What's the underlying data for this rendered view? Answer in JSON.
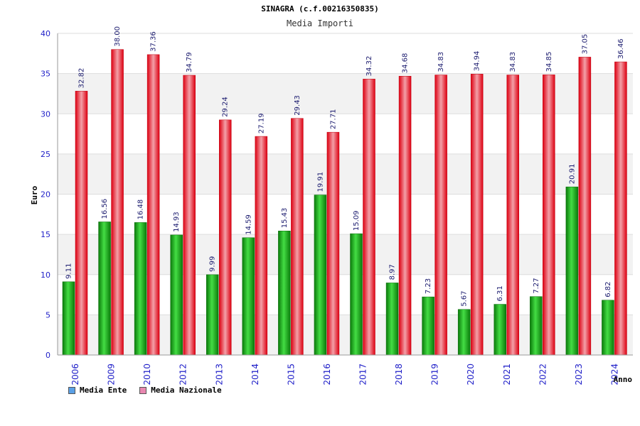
{
  "chart_data": {
    "type": "bar",
    "title": "SINAGRA (c.f.00216350835)",
    "subtitle": "Media Importi",
    "xlabel": "Anno",
    "ylabel": "Euro",
    "ylim": [
      0,
      40
    ],
    "yticks": [
      0,
      5,
      10,
      15,
      20,
      25,
      30,
      35,
      40
    ],
    "grid": true,
    "legend_position": "bottom-left",
    "categories": [
      "2006",
      "2009",
      "2010",
      "2012",
      "2013",
      "2014",
      "2015",
      "2016",
      "2017",
      "2018",
      "2019",
      "2020",
      "2021",
      "2022",
      "2023",
      "2024"
    ],
    "series": [
      {
        "name": "Media Ente",
        "color": "#22bb22",
        "values": [
          9.11,
          16.56,
          16.48,
          14.93,
          9.99,
          14.59,
          15.43,
          19.91,
          15.09,
          8.97,
          7.23,
          5.67,
          6.31,
          7.27,
          20.91,
          6.82
        ],
        "labels": [
          "9.11",
          "16.56",
          "16.48",
          "14.93",
          "9.99",
          "14.59",
          "15.43",
          "19.91",
          "15.09",
          "8.97",
          "7.23",
          "5.67",
          "6.31",
          "7.27",
          "20.91",
          "6.82"
        ]
      },
      {
        "name": "Media Nazionale",
        "color": "#ee2233",
        "values": [
          32.82,
          38.0,
          37.36,
          34.79,
          29.24,
          27.19,
          29.43,
          27.71,
          34.32,
          34.68,
          34.83,
          34.94,
          34.83,
          34.85,
          37.05,
          36.46
        ],
        "labels": [
          "32.82",
          "38.00",
          "37.36",
          "34.79",
          "29.24",
          "27.19",
          "29.43",
          "27.71",
          "34.32",
          "34.68",
          "34.83",
          "34.94",
          "34.83",
          "34.85",
          "37.05",
          "36.46"
        ]
      }
    ]
  },
  "legend": {
    "ente_label": "Media Ente",
    "ente_color": "#5aa0e6",
    "nazionale_label": "Media Nazionale",
    "nazionale_color": "#e887b0"
  }
}
